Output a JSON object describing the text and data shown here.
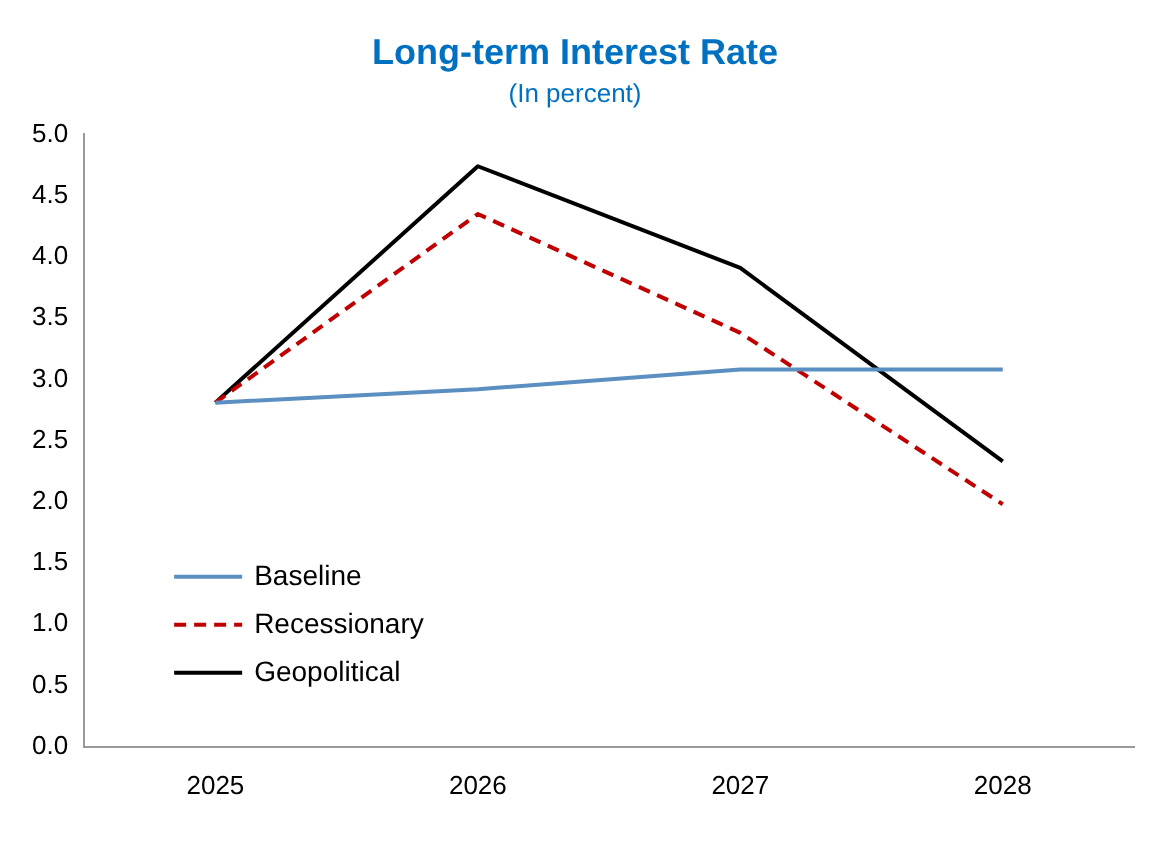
{
  "chart_data": {
    "type": "line",
    "title": "Long-term Interest Rate",
    "subtitle": "(In percent)",
    "categories": [
      "2025",
      "2026",
      "2027",
      "2028"
    ],
    "series": [
      {
        "name": "Baseline",
        "color": "#5b8ec1",
        "values": [
          2.81,
          2.92,
          3.08,
          3.08
        ]
      },
      {
        "name": "Recessionary",
        "color": "#c00000",
        "values": [
          2.81,
          4.35,
          3.38,
          1.98
        ],
        "line_style": "dashed"
      },
      {
        "name": "Geopolitical",
        "color": "#000000",
        "values": [
          2.81,
          4.74,
          3.91,
          2.33
        ]
      }
    ],
    "ylim": [
      0,
      5
    ],
    "yticks": [
      {
        "value": 0,
        "label": "0.0"
      },
      {
        "value": 0.5,
        "label": "0.5"
      },
      {
        "value": 1,
        "label": "1.0"
      },
      {
        "value": 1.5,
        "label": "1.5"
      },
      {
        "value": 2,
        "label": "2.0"
      },
      {
        "value": 2.5,
        "label": "2.5"
      },
      {
        "value": 3,
        "label": "3.0"
      },
      {
        "value": 3.5,
        "label": "3.5"
      },
      {
        "value": 4,
        "label": "4.0"
      },
      {
        "value": 4.5,
        "label": "4.5"
      },
      {
        "value": 5,
        "label": "5.0"
      }
    ],
    "grid": false,
    "legend": "bottom left",
    "marker": "none",
    "line_style": "solid"
  }
}
